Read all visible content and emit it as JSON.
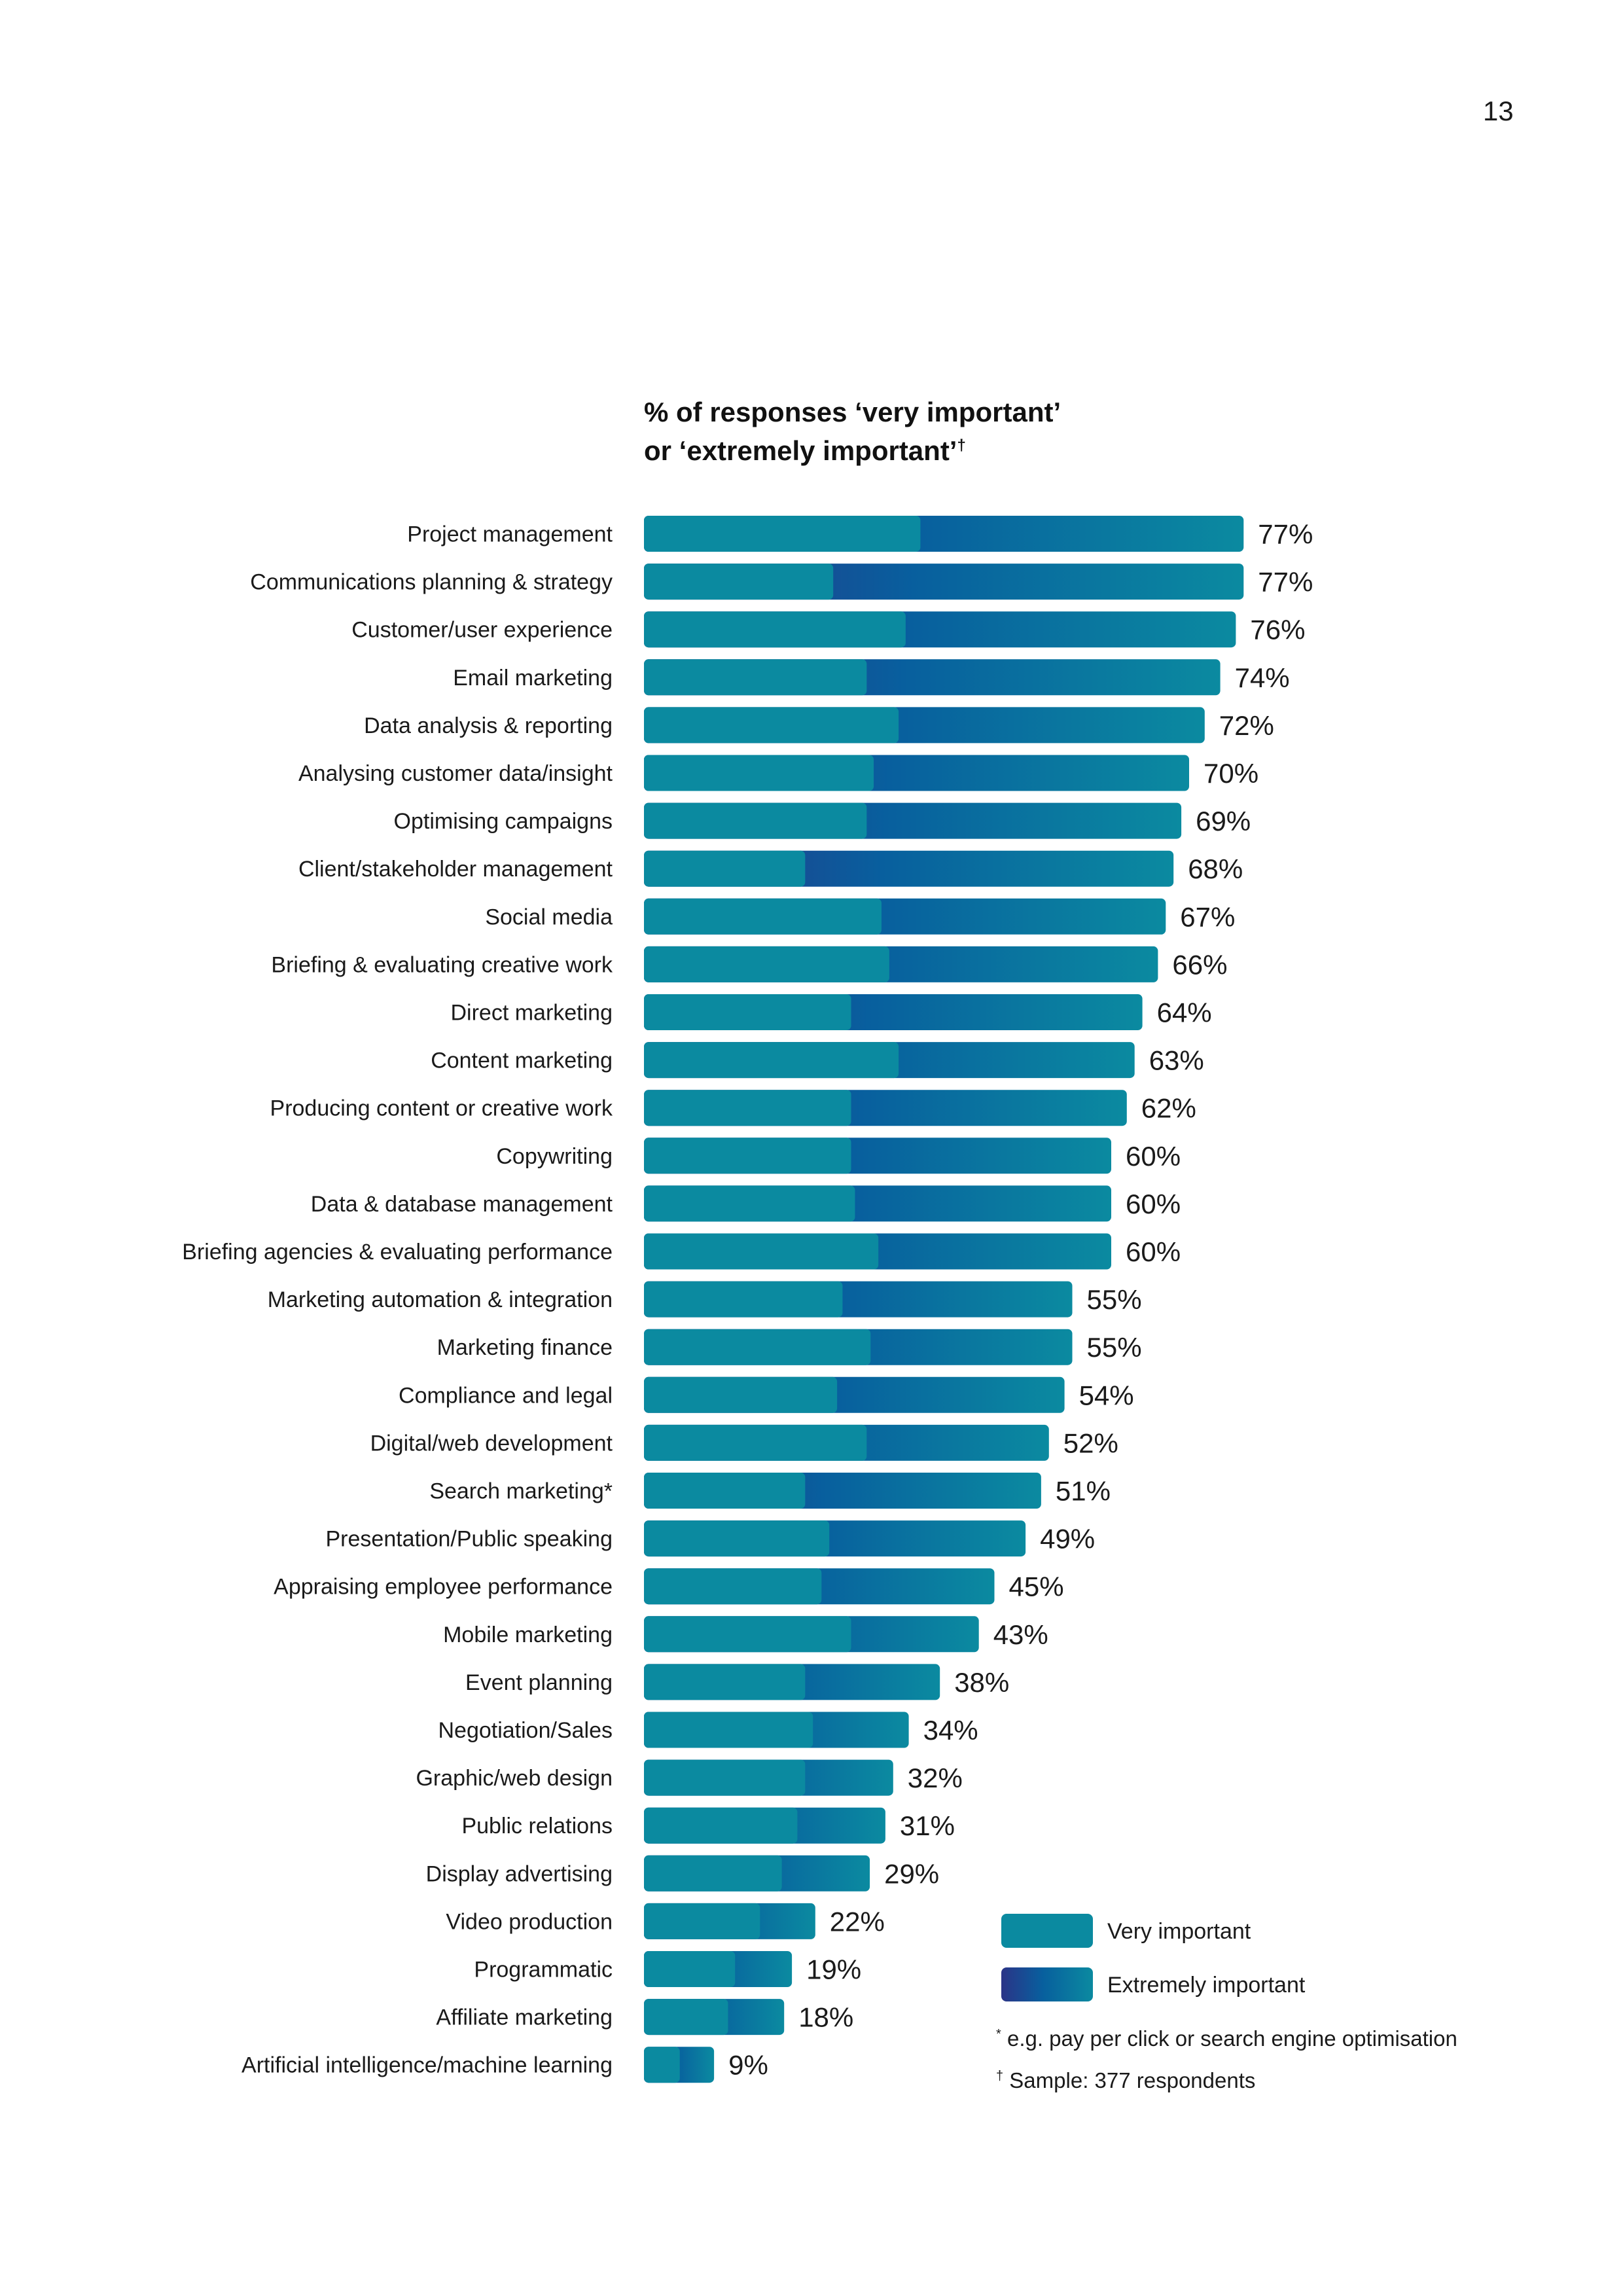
{
  "page_number": "13",
  "colors": {
    "very_important": "#0b8aa0",
    "extremely_important_start": "#2b3487",
    "extremely_important_mid": "#085f9e",
    "extremely_important_end": "#0b8aa0"
  },
  "legend": {
    "very_important": "Very important",
    "extremely_important": "Extremely important"
  },
  "footnotes": {
    "star_mark": "*",
    "star_text": "e.g. pay per click or search engine optimisation",
    "dagger_mark": "†",
    "dagger_text": "Sample: 377 respondents"
  },
  "chart_data": {
    "type": "bar",
    "orientation": "horizontal",
    "stacked": true,
    "title_line1": "% of responses ‘very important’",
    "title_line2": "or ‘extremely important’",
    "title_mark": "†",
    "xlim": [
      0,
      100
    ],
    "grid": false,
    "legend_position": "bottom-right",
    "categories": [
      "Project management",
      "Communications planning & strategy",
      "Customer/user experience",
      "Email marketing",
      "Data analysis & reporting",
      "Analysing customer data/insight",
      "Optimising campaigns",
      "Client/stakeholder management",
      "Social media",
      "Briefing & evaluating creative work",
      "Direct marketing",
      "Content marketing",
      "Producing content or creative work",
      "Copywriting",
      "Data & database management",
      "Briefing agencies & evaluating performance",
      "Marketing automation & integration",
      "Marketing finance",
      "Compliance and legal",
      "Digital/web development",
      "Search marketing*",
      "Presentation/Public speaking",
      "Appraising employee performance",
      "Mobile marketing",
      "Event planning",
      "Negotiation/Sales",
      "Graphic/web design",
      "Public relations",
      "Display advertising",
      "Video production",
      "Programmatic",
      "Affiliate marketing",
      "Artificial intelligence/machine learning"
    ],
    "series": [
      {
        "name": "Very important",
        "values": [
          35.5,
          24.3,
          33.6,
          28.6,
          32.7,
          29.5,
          28.6,
          20.7,
          30.5,
          31.5,
          26.6,
          32.7,
          26.6,
          26.6,
          27.1,
          30.1,
          25.5,
          29.1,
          24.8,
          28.6,
          20.7,
          23.8,
          22.8,
          26.6,
          20.7,
          21.7,
          20.7,
          19.7,
          17.7,
          14.9,
          11.7,
          10.8,
          4.6
        ]
      },
      {
        "name": "Extremely important",
        "values": [
          41.5,
          52.7,
          42.4,
          45.4,
          39.3,
          40.5,
          40.4,
          47.3,
          36.5,
          34.5,
          37.4,
          30.3,
          35.4,
          33.4,
          32.9,
          29.9,
          29.5,
          25.9,
          29.2,
          23.4,
          30.3,
          25.2,
          22.2,
          16.4,
          17.3,
          12.3,
          11.3,
          11.3,
          11.3,
          7.1,
          7.3,
          7.2,
          4.4
        ]
      }
    ],
    "totals": [
      77,
      77,
      76,
      74,
      72,
      70,
      69,
      68,
      67,
      66,
      64,
      63,
      62,
      60,
      60,
      60,
      55,
      55,
      54,
      52,
      51,
      49,
      45,
      43,
      38,
      34,
      32,
      31,
      29,
      22,
      19,
      18,
      9
    ],
    "value_labels": [
      "77%",
      "77%",
      "76%",
      "74%",
      "72%",
      "70%",
      "69%",
      "68%",
      "67%",
      "66%",
      "64%",
      "63%",
      "62%",
      "60%",
      "60%",
      "60%",
      "55%",
      "55%",
      "54%",
      "52%",
      "51%",
      "49%",
      "45%",
      "43%",
      "38%",
      "34%",
      "32%",
      "31%",
      "29%",
      "22%",
      "19%",
      "18%",
      "9%"
    ]
  }
}
